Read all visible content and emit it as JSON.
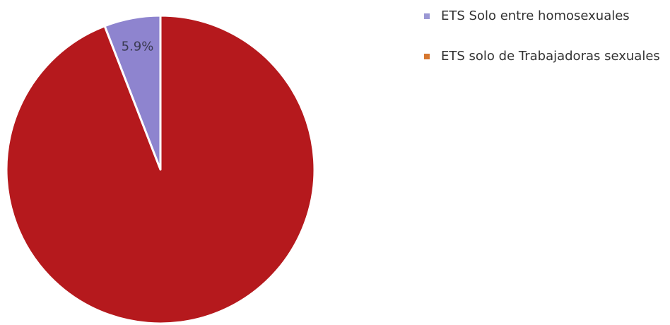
{
  "chart_data": {
    "type": "pie",
    "title": "",
    "slices": [
      {
        "label": "ETS Solo entre homosexuales",
        "value": 5.9,
        "display": "5.9%",
        "color": "#8E84CF",
        "legend_color": "#9B98D4"
      },
      {
        "label": "ETS solo de Trabajadoras sexuales",
        "value": 94.1,
        "display": "",
        "color": "#B5191D",
        "legend_color": "#D6772F"
      }
    ],
    "legend_position": "right",
    "start_angle": "12 o'clock",
    "direction": "counterclockwise"
  }
}
